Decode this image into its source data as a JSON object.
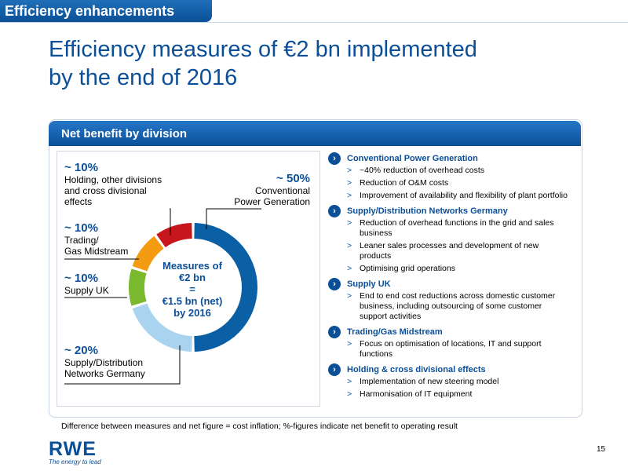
{
  "header": {
    "tab_label": "Efficiency enhancements"
  },
  "title": {
    "line1": "Efficiency measures of €2 bn implemented",
    "line2": "by the end of 2016"
  },
  "panel": {
    "title": "Net benefit by division"
  },
  "center": {
    "l1": "Measures of",
    "l2": "€2 bn",
    "l3": "=",
    "l4": "€1.5 bn (net)",
    "l5": "by 2016"
  },
  "labels": {
    "holding": {
      "pct": "~ 10%",
      "l1": "Holding, other divisions",
      "l2": "and cross divisional",
      "l3": "effects"
    },
    "conventional": {
      "pct": "~ 50%",
      "l1": "Conventional",
      "l2": "Power Generation"
    },
    "trading": {
      "pct": "~ 10%",
      "l1": "Trading/",
      "l2": "Gas Midstream"
    },
    "supply_uk": {
      "pct": "~ 10%",
      "l1": "Supply UK"
    },
    "supply_de": {
      "pct": "~ 20%",
      "l1": "Supply/Distribution",
      "l2": "Networks Germany"
    }
  },
  "colors": {
    "conventional": "#0b5fa5",
    "supply_de": "#a9d3ef",
    "supply_uk": "#7ab82e",
    "trading": "#f39c12",
    "holding": "#c8161d",
    "brand": "#0b4f98"
  },
  "chart_data": {
    "type": "pie",
    "title": "Net benefit by division",
    "unit": "%",
    "categories": [
      "Conventional Power Generation",
      "Supply/Distribution Networks Germany",
      "Supply UK",
      "Trading/Gas Midstream",
      "Holding, other divisions and cross divisional effects"
    ],
    "values": [
      50,
      20,
      10,
      10,
      10
    ],
    "series": [
      {
        "values": [
          50,
          20,
          10,
          10,
          10
        ]
      }
    ]
  },
  "sections": [
    {
      "title": "Conventional Power Generation",
      "items": [
        {
          "l1": "~40% reduction of overhead costs"
        },
        {
          "l1": "Reduction of O&M costs"
        },
        {
          "l1": "Improvement of availability and flexibility of plant portfolio"
        }
      ]
    },
    {
      "title": "Supply/Distribution Networks Germany",
      "items": [
        {
          "l1": "Reduction of overhead functions in the grid and sales",
          "l2": "business"
        },
        {
          "l1": "Leaner sales processes and development of new",
          "l2": "products"
        },
        {
          "l1": "Optimising grid operations"
        }
      ]
    },
    {
      "title": "Supply UK",
      "items": [
        {
          "l1": "End to end cost reductions across domestic customer",
          "l2": "business, including outsourcing of some customer",
          "l3": "support activities"
        }
      ]
    },
    {
      "title": "Trading/Gas Midstream",
      "items": [
        {
          "l1": "Focus on optimisation of locations, IT and support",
          "l2": "functions"
        }
      ]
    },
    {
      "title": "Holding & cross divisional effects",
      "items": [
        {
          "l1": "Implementation of new steering model"
        },
        {
          "l1": "Harmonisation of IT equipment"
        }
      ]
    }
  ],
  "bullet_symbol": ">",
  "chevron_symbol": "›",
  "footnote": "Difference between measures and net figure = cost inflation; %-figures indicate net benefit to operating result",
  "logo": {
    "text": "RWE",
    "tagline": "The energy to lead"
  },
  "page_number": "15"
}
